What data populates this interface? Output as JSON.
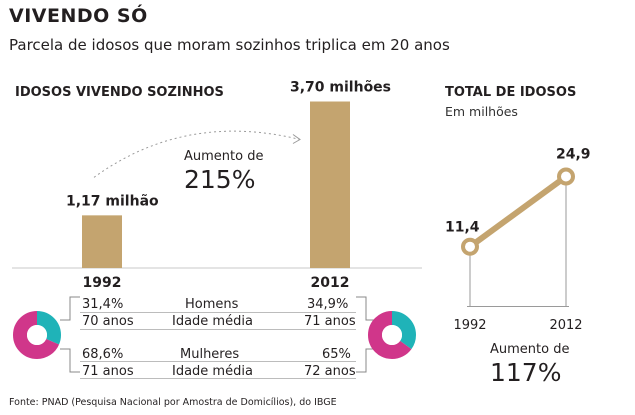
{
  "header": {
    "title": "VIVENDO SÓ",
    "subtitle": "Parcela de idosos que moram sozinhos triplica em 20 anos"
  },
  "left_panel": {
    "title": "IDOSOS VIVENDO SOZINHOS",
    "increase_label": "Aumento de",
    "increase_value": "215%",
    "rows": [
      {
        "left": "31,4%",
        "center": "Homens",
        "right": "34,9%"
      },
      {
        "left": "70 anos",
        "center": "Idade média",
        "right": "71 anos"
      },
      {
        "left": "68,6%",
        "center": "Mulheres",
        "right": "65%"
      },
      {
        "left": "71 anos",
        "center": "Idade média",
        "right": "72 anos"
      }
    ]
  },
  "right_panel": {
    "title": "TOTAL DE IDOSOS",
    "subtitle": "Em milhões",
    "increase_label": "Aumento de",
    "increase_value": "117%"
  },
  "source": "Fonte: PNAD (Pesquisa Nacional por Amostra de Domicílios), do IBGE",
  "colors": {
    "bar": "#c4a46f",
    "men": "#1fb3b8",
    "women": "#d0368a",
    "text": "#231f20"
  },
  "chart_data": [
    {
      "type": "bar",
      "categories": [
        "1992",
        "2012"
      ],
      "values": [
        1.17,
        3.7
      ],
      "value_labels": [
        "1,17 milhão",
        "3,70 milhões"
      ],
      "ylim": [
        0,
        4
      ]
    },
    {
      "type": "pie",
      "labels": [
        "Homens",
        "Mulheres"
      ],
      "groups": [
        {
          "category": "1992",
          "values": [
            31.4,
            68.6
          ]
        },
        {
          "category": "2012",
          "values": [
            34.9,
            65.0
          ]
        }
      ]
    },
    {
      "type": "line",
      "x": [
        "1992",
        "2012"
      ],
      "values": [
        11.4,
        24.9
      ],
      "value_labels": [
        "11,4",
        "24,9"
      ],
      "ylim": [
        0,
        30
      ]
    }
  ]
}
